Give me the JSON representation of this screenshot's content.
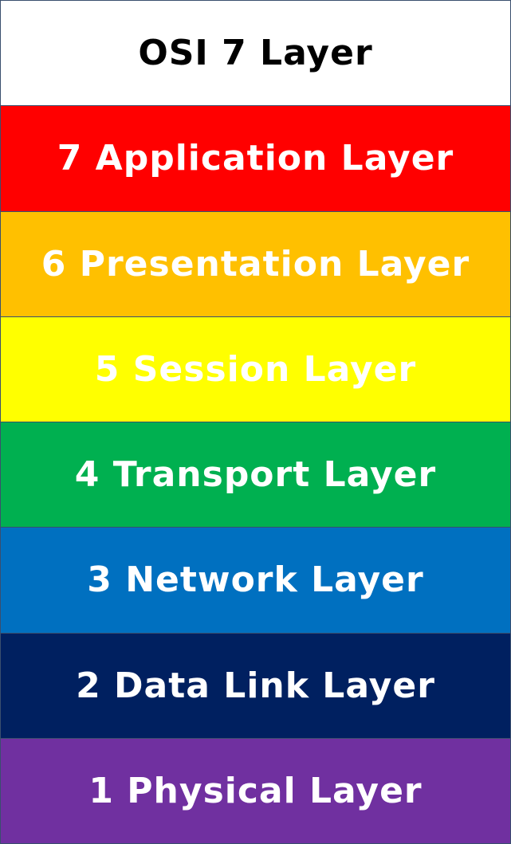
{
  "title": {
    "label": "OSI 7 Layer",
    "background": "#ffffff",
    "text_color": "#000000"
  },
  "layers": [
    {
      "label": "7 Application Layer",
      "background": "#ff0000",
      "text_color": "#ffffff"
    },
    {
      "label": "6 Presentation Layer",
      "background": "#ffc000",
      "text_color": "#ffffff"
    },
    {
      "label": "5 Session Layer",
      "background": "#ffff00",
      "text_color": "#ffffff"
    },
    {
      "label": "4 Transport Layer",
      "background": "#00b050",
      "text_color": "#ffffff"
    },
    {
      "label": "3 Network Layer",
      "background": "#0070c0",
      "text_color": "#ffffff"
    },
    {
      "label": "2 Data Link Layer",
      "background": "#002060",
      "text_color": "#ffffff"
    },
    {
      "label": "1 Physical Layer",
      "background": "#7030a0",
      "text_color": "#ffffff"
    }
  ]
}
